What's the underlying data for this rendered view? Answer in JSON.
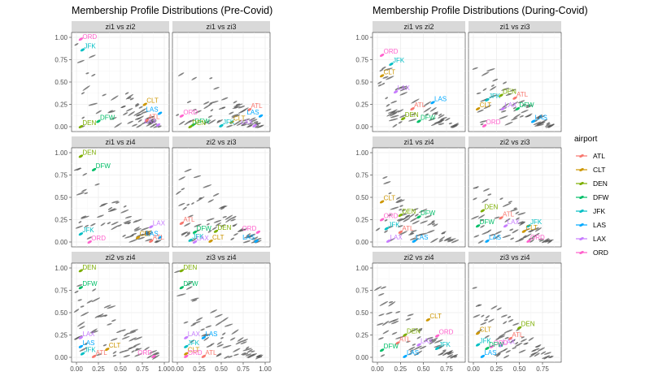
{
  "legend": {
    "title": "airport",
    "items": [
      {
        "name": "ATL",
        "color": "#F8766D"
      },
      {
        "name": "CLT",
        "color": "#CD9600"
      },
      {
        "name": "DEN",
        "color": "#7CAE00"
      },
      {
        "name": "DFW",
        "color": "#00BE67"
      },
      {
        "name": "JFK",
        "color": "#00BFC4"
      },
      {
        "name": "LAS",
        "color": "#00A9FF"
      },
      {
        "name": "LAX",
        "color": "#C77CFF"
      },
      {
        "name": "ORD",
        "color": "#FF61CC"
      }
    ]
  },
  "chart_data": [
    {
      "type": "scatter",
      "title": "Membership Profile Distributions (Pre-Covid)",
      "ylim": [
        0,
        1
      ],
      "yticks": [
        "0.00",
        "0.25",
        "0.50",
        "0.75",
        "1.00"
      ],
      "xticks": [
        "0.00",
        "0.25",
        "0.50",
        "0.75",
        "1.00"
      ],
      "xlim": [
        0,
        1
      ],
      "panels": [
        {
          "strip": "zi1 vs zi2",
          "points": [
            {
              "a": "ORD",
              "x": 0.05,
              "y": 0.98
            },
            {
              "a": "JFK",
              "x": 0.07,
              "y": 0.86
            },
            {
              "a": "CLT",
              "x": 0.78,
              "y": 0.25
            },
            {
              "a": "ATL",
              "x": 0.8,
              "y": 0.07
            },
            {
              "a": "LAS",
              "x": 0.95,
              "y": 0.15
            },
            {
              "a": "DFW",
              "x": 0.25,
              "y": 0.06
            },
            {
              "a": "DEN",
              "x": 0.05,
              "y": 0.0
            },
            {
              "a": "LAX",
              "x": 0.93,
              "y": 0.02
            }
          ]
        },
        {
          "strip": "zi1 vs zi3",
          "points": [
            {
              "a": "ATL",
              "x": 0.82,
              "y": 0.19
            },
            {
              "a": "LAS",
              "x": 0.95,
              "y": 0.12
            },
            {
              "a": "CLT",
              "x": 0.62,
              "y": 0.05
            },
            {
              "a": "ORD",
              "x": 0.05,
              "y": 0.12
            },
            {
              "a": "DFW",
              "x": 0.18,
              "y": 0.02
            },
            {
              "a": "JFK",
              "x": 0.5,
              "y": 0.01
            },
            {
              "a": "DEN",
              "x": 0.15,
              "y": 0.0
            },
            {
              "a": "LAX",
              "x": 0.88,
              "y": 0.01
            }
          ]
        },
        {
          "strip": "zi1 vs zi4",
          "points": [
            {
              "a": "DEN",
              "x": 0.05,
              "y": 0.96
            },
            {
              "a": "DFW",
              "x": 0.2,
              "y": 0.81
            },
            {
              "a": "LAX",
              "x": 0.85,
              "y": 0.17
            },
            {
              "a": "JFK",
              "x": 0.05,
              "y": 0.09
            },
            {
              "a": "LAS",
              "x": 0.95,
              "y": 0.05
            },
            {
              "a": "CLT",
              "x": 0.7,
              "y": 0.05
            },
            {
              "a": "ORD",
              "x": 0.15,
              "y": 0.0
            },
            {
              "a": "ATL",
              "x": 0.85,
              "y": 0.01
            }
          ]
        },
        {
          "strip": "zi2 vs zi3",
          "points": [
            {
              "a": "ATL",
              "x": 0.05,
              "y": 0.21
            },
            {
              "a": "DEN",
              "x": 0.44,
              "y": 0.12
            },
            {
              "a": "DFW",
              "x": 0.2,
              "y": 0.11
            },
            {
              "a": "ORD",
              "x": 0.92,
              "y": 0.11
            },
            {
              "a": "CLT",
              "x": 0.38,
              "y": 0.01
            },
            {
              "a": "JFK",
              "x": 0.15,
              "y": 0.02
            },
            {
              "a": "LAX",
              "x": 0.2,
              "y": 0.0
            },
            {
              "a": "LAS",
              "x": 0.9,
              "y": 0.01
            }
          ]
        },
        {
          "strip": "zi2 vs zi4",
          "points": [
            {
              "a": "DEN",
              "x": 0.05,
              "y": 0.97
            },
            {
              "a": "DFW",
              "x": 0.05,
              "y": 0.78
            },
            {
              "a": "LAX",
              "x": 0.05,
              "y": 0.22
            },
            {
              "a": "LAS",
              "x": 0.05,
              "y": 0.12
            },
            {
              "a": "CLT",
              "x": 0.35,
              "y": 0.09
            },
            {
              "a": "JFK",
              "x": 0.07,
              "y": 0.04
            },
            {
              "a": "ATL",
              "x": 0.2,
              "y": 0.01
            },
            {
              "a": "ORD",
              "x": 0.88,
              "y": 0.01
            }
          ]
        },
        {
          "strip": "zi3 vs zi4",
          "points": [
            {
              "a": "DEN",
              "x": 0.05,
              "y": 0.97
            },
            {
              "a": "DFW",
              "x": 0.05,
              "y": 0.78
            },
            {
              "a": "LAX",
              "x": 0.1,
              "y": 0.22
            },
            {
              "a": "LAS",
              "x": 0.3,
              "y": 0.22
            },
            {
              "a": "JFK",
              "x": 0.1,
              "y": 0.12
            },
            {
              "a": "CLT",
              "x": 0.1,
              "y": 0.04
            },
            {
              "a": "ORD",
              "x": 0.1,
              "y": 0.01
            },
            {
              "a": "ATL",
              "x": 0.3,
              "y": 0.01
            }
          ]
        }
      ]
    },
    {
      "type": "scatter",
      "title": "Membership Profile Distributions (During-Covid)",
      "ylim": [
        0,
        1
      ],
      "yticks": [
        "0.00",
        "0.25",
        "0.50",
        "0.75",
        "1.00"
      ],
      "xticks": [
        "0.00",
        "0.25",
        "0.50",
        "0.75"
      ],
      "xlim": [
        0,
        0.9
      ],
      "panels": [
        {
          "strip": "zi1 vs zi2",
          "points": [
            {
              "a": "ORD",
              "x": 0.05,
              "y": 0.8
            },
            {
              "a": "JFK",
              "x": 0.15,
              "y": 0.7
            },
            {
              "a": "CLT",
              "x": 0.05,
              "y": 0.57
            },
            {
              "a": "LAX",
              "x": 0.2,
              "y": 0.39
            },
            {
              "a": "LAS",
              "x": 0.6,
              "y": 0.27
            },
            {
              "a": "ATL",
              "x": 0.38,
              "y": 0.2
            },
            {
              "a": "DEN",
              "x": 0.28,
              "y": 0.09
            },
            {
              "a": "DFW",
              "x": 0.45,
              "y": 0.06
            }
          ]
        },
        {
          "strip": "zi1 vs zi3",
          "points": [
            {
              "a": "DEN",
              "x": 0.3,
              "y": 0.35
            },
            {
              "a": "ATL",
              "x": 0.45,
              "y": 0.32
            },
            {
              "a": "JFK",
              "x": 0.15,
              "y": 0.3
            },
            {
              "a": "LAX",
              "x": 0.32,
              "y": 0.2
            },
            {
              "a": "DFW",
              "x": 0.48,
              "y": 0.2
            },
            {
              "a": "LAS",
              "x": 0.65,
              "y": 0.06
            },
            {
              "a": "CLT",
              "x": 0.05,
              "y": 0.2
            },
            {
              "a": "ORD",
              "x": 0.12,
              "y": 0.01
            }
          ]
        },
        {
          "strip": "zi1 vs zi4",
          "points": [
            {
              "a": "CLT",
              "x": 0.05,
              "y": 0.45
            },
            {
              "a": "DEN",
              "x": 0.25,
              "y": 0.3
            },
            {
              "a": "DFW",
              "x": 0.45,
              "y": 0.28
            },
            {
              "a": "ORD",
              "x": 0.05,
              "y": 0.25
            },
            {
              "a": "JFK",
              "x": 0.1,
              "y": 0.15
            },
            {
              "a": "ATL",
              "x": 0.25,
              "y": 0.11
            },
            {
              "a": "LAX",
              "x": 0.12,
              "y": 0.01
            },
            {
              "a": "LAS",
              "x": 0.4,
              "y": 0.01
            }
          ]
        },
        {
          "strip": "zi2 vs zi3",
          "points": [
            {
              "a": "DEN",
              "x": 0.1,
              "y": 0.35
            },
            {
              "a": "ATL",
              "x": 0.3,
              "y": 0.27
            },
            {
              "a": "LAX",
              "x": 0.35,
              "y": 0.18
            },
            {
              "a": "JFK",
              "x": 0.6,
              "y": 0.18
            },
            {
              "a": "DFW",
              "x": 0.05,
              "y": 0.18
            },
            {
              "a": "CLT",
              "x": 0.55,
              "y": 0.12
            },
            {
              "a": "LAS",
              "x": 0.15,
              "y": 0.01
            },
            {
              "a": "ORD",
              "x": 0.6,
              "y": 0.01
            }
          ]
        },
        {
          "strip": "zi2 vs zi4",
          "points": [
            {
              "a": "CLT",
              "x": 0.55,
              "y": 0.42
            },
            {
              "a": "DEN",
              "x": 0.3,
              "y": 0.25
            },
            {
              "a": "ORD",
              "x": 0.65,
              "y": 0.24
            },
            {
              "a": "ATL",
              "x": 0.22,
              "y": 0.16
            },
            {
              "a": "LAX",
              "x": 0.45,
              "y": 0.14
            },
            {
              "a": "DFW",
              "x": 0.05,
              "y": 0.08
            },
            {
              "a": "JFK",
              "x": 0.65,
              "y": 0.1
            },
            {
              "a": "LAS",
              "x": 0.3,
              "y": 0.01
            }
          ]
        },
        {
          "strip": "zi3 vs zi4",
          "points": [
            {
              "a": "DEN",
              "x": 0.5,
              "y": 0.33
            },
            {
              "a": "CLT",
              "x": 0.05,
              "y": 0.27
            },
            {
              "a": "ATL",
              "x": 0.4,
              "y": 0.21
            },
            {
              "a": "LAX",
              "x": 0.3,
              "y": 0.13
            },
            {
              "a": "JFK",
              "x": 0.05,
              "y": 0.14
            },
            {
              "a": "ORD",
              "x": 0.2,
              "y": 0.12
            },
            {
              "a": "DFW",
              "x": 0.15,
              "y": 0.1
            },
            {
              "a": "LAS",
              "x": 0.1,
              "y": 0.01
            }
          ]
        }
      ]
    }
  ]
}
